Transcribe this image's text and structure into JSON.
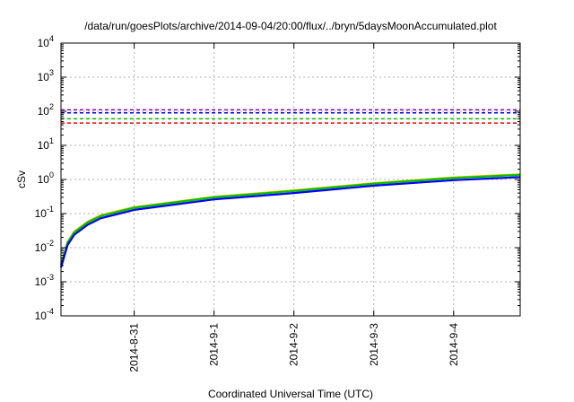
{
  "chart_data": {
    "type": "line",
    "title": "/data/run/goesPlots/archive/2014-09-04/20:00/flux/../bryn/5daysMoonAccumulated.plot",
    "xlabel": "Coordinated Universal Time (UTC)",
    "ylabel": "cSv",
    "yscale": "log",
    "ylim": [
      0.0001,
      10000
    ],
    "xlim": [
      "2014-08-30T02:00",
      "2014-09-04T20:00"
    ],
    "grid": true,
    "x_ticks": [
      "2014-8-31",
      "2014-9-1",
      "2014-9-2",
      "2014-9-3",
      "2014-9-4"
    ],
    "x_tick_dates": [
      "2014-08-31T00:00",
      "2014-09-01T00:00",
      "2014-09-02T00:00",
      "2014-09-03T00:00",
      "2014-09-04T00:00"
    ],
    "y_ticks": [
      {
        "base": "10",
        "exp": "-4",
        "value": 0.0001
      },
      {
        "base": "10",
        "exp": "-3",
        "value": 0.001
      },
      {
        "base": "10",
        "exp": "-2",
        "value": 0.01
      },
      {
        "base": "10",
        "exp": "-1",
        "value": 0.1
      },
      {
        "base": "10",
        "exp": "0",
        "value": 1
      },
      {
        "base": "10",
        "exp": "1",
        "value": 10
      },
      {
        "base": "10",
        "exp": "2",
        "value": 100
      },
      {
        "base": "10",
        "exp": "3",
        "value": 1000
      },
      {
        "base": "10",
        "exp": "4",
        "value": 10000
      }
    ],
    "reference_lines": [
      {
        "color": "#9400d3",
        "value": 110
      },
      {
        "color": "#0000ff",
        "value": 90
      },
      {
        "color": "#00c000",
        "value": 60
      },
      {
        "color": "#ff0000",
        "value": 45
      }
    ],
    "series": [
      {
        "color": "#e6c000",
        "x": [
          "2014-08-30T02:00",
          "2014-08-30T04:00",
          "2014-08-30T06:00",
          "2014-08-30T10:00",
          "2014-08-30T14:00",
          "2014-08-31T00:00",
          "2014-09-01T00:00",
          "2014-09-02T00:00",
          "2014-09-03T00:00",
          "2014-09-04T00:00",
          "2014-09-04T20:00"
        ],
        "y": [
          0.0033,
          0.015,
          0.03,
          0.058,
          0.09,
          0.155,
          0.31,
          0.48,
          0.78,
          1.15,
          1.42
        ]
      },
      {
        "color": "#00c000",
        "x": [
          "2014-08-30T02:00",
          "2014-08-30T04:00",
          "2014-08-30T06:00",
          "2014-08-30T10:00",
          "2014-08-30T14:00",
          "2014-08-31T00:00",
          "2014-09-01T00:00",
          "2014-09-02T00:00",
          "2014-09-03T00:00",
          "2014-09-04T00:00",
          "2014-09-04T20:00"
        ],
        "y": [
          0.0031,
          0.014,
          0.028,
          0.055,
          0.085,
          0.148,
          0.3,
          0.46,
          0.75,
          1.1,
          1.36
        ]
      },
      {
        "color": "#0000ff",
        "x": [
          "2014-08-30T02:00",
          "2014-08-30T04:00",
          "2014-08-30T06:00",
          "2014-08-30T10:00",
          "2014-08-30T14:00",
          "2014-08-31T00:00",
          "2014-09-01T00:00",
          "2014-09-02T00:00",
          "2014-09-03T00:00",
          "2014-09-04T00:00",
          "2014-09-04T20:00"
        ],
        "y": [
          0.0026,
          0.012,
          0.024,
          0.047,
          0.073,
          0.128,
          0.26,
          0.4,
          0.66,
          0.95,
          1.17
        ]
      }
    ]
  }
}
